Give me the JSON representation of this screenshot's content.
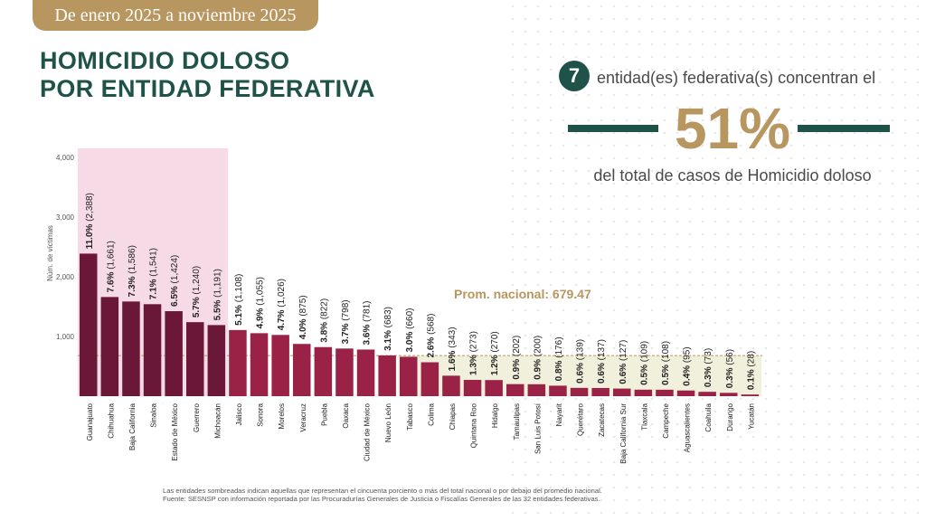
{
  "header": {
    "period": "De enero 2025 a noviembre 2025",
    "title_line1": "HOMICIDIO DOLOSO",
    "title_line2": "POR ENTIDAD FEDERATIVA"
  },
  "summary": {
    "count": "7",
    "count_text": "entidad(es) federativa(s) concentran el",
    "percent": "51%",
    "subtitle": "del total de casos de Homicidio doloso"
  },
  "colors": {
    "highlight_bar": "#6b1838",
    "bar": "#9b2247",
    "highlight_band": "#f6dbe7",
    "average_band": "#f1f0dc",
    "accent_gold": "#b89660",
    "accent_green": "#1f5248"
  },
  "chart_data": {
    "type": "bar",
    "ylabel": "Núm. de víctimas",
    "ylim": [
      0,
      4000
    ],
    "yticks": [
      1000,
      2000,
      3000,
      4000
    ],
    "ytick_labels": [
      "1,000",
      "2,000",
      "3,000",
      "4,000"
    ],
    "average": 679.47,
    "average_label": "Prom. nacional: 679.47",
    "highlighted_count": 7,
    "categories": [
      "Guanajuato",
      "Chihuahua",
      "Baja California",
      "Sinaloa",
      "Estado de México",
      "Guerrero",
      "Michoacán",
      "Jalisco",
      "Sonora",
      "Morelos",
      "Veracruz",
      "Puebla",
      "Oaxaca",
      "Ciudad de México",
      "Nuevo León",
      "Tabasco",
      "Colima",
      "Chiapas",
      "Quintana Roo",
      "Hidalgo",
      "Tamaulipas",
      "San Luis Potosí",
      "Nayarit",
      "Querétaro",
      "Zacatecas",
      "Baja California Sur",
      "Tlaxcala",
      "Campeche",
      "Aguascalientes",
      "Coahuila",
      "Durango",
      "Yucatán"
    ],
    "values": [
      2388,
      1661,
      1586,
      1541,
      1424,
      1240,
      1191,
      1108,
      1055,
      1026,
      875,
      822,
      798,
      781,
      683,
      660,
      568,
      343,
      273,
      270,
      202,
      200,
      176,
      139,
      137,
      127,
      109,
      108,
      95,
      73,
      56,
      28
    ],
    "pct_labels": [
      "11.0%",
      "7.6%",
      "7.3%",
      "7.1%",
      "6.5%",
      "5.7%",
      "5.5%",
      "5.1%",
      "4.9%",
      "4.7%",
      "4.0%",
      "3.8%",
      "3.7%",
      "3.6%",
      "3.1%",
      "3.0%",
      "2.6%",
      "1.6%",
      "1.3%",
      "1.2%",
      "0.9%",
      "0.9%",
      "0.8%",
      "0.6%",
      "0.6%",
      "0.6%",
      "0.5%",
      "0.5%",
      "0.4%",
      "0.3%",
      "0.3%",
      "0.1%"
    ],
    "count_labels": [
      "(2,388)",
      "(1,661)",
      "(1,586)",
      "(1,541)",
      "(1,424)",
      "(1,240)",
      "(1,191)",
      "(1,108)",
      "(1,055)",
      "(1,026)",
      "(875)",
      "(822)",
      "(798)",
      "(781)",
      "(683)",
      "(660)",
      "(568)",
      "(343)",
      "(273)",
      "(270)",
      "(202)",
      "(200)",
      "(176)",
      "(139)",
      "(137)",
      "(127)",
      "(109)",
      "(108)",
      "(95)",
      "(73)",
      "(56)",
      "(28)"
    ]
  },
  "footnote": {
    "line1": "Las entidades sombreadas indican aquellas que representan el cincuenta porciento o más del total nacional o por debajo del promedio nacional.",
    "line2": "Fuente: SESNSP con información reportada por las Procuradurías Generales de Justicia o Fiscalías Generales de las 32 entidades federativas."
  }
}
